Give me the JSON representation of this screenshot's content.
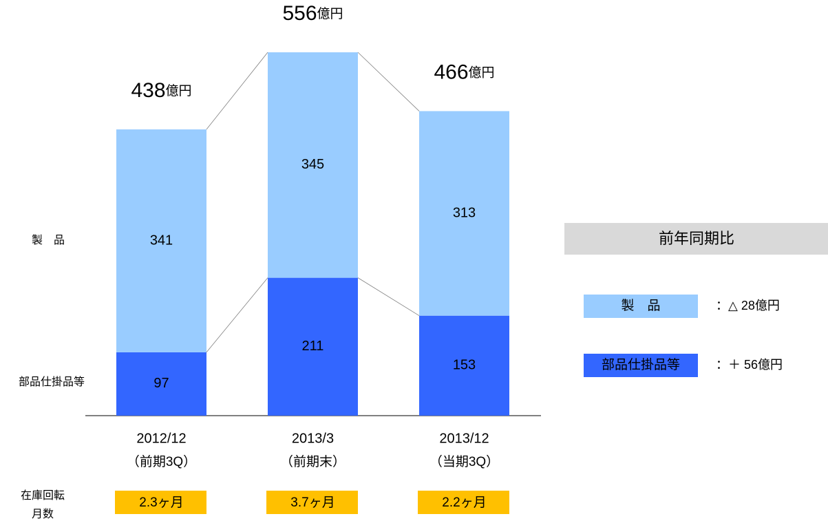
{
  "chart_data": {
    "type": "stacked_bar",
    "categories": [
      "2012/12",
      "2013/3",
      "2013/12"
    ],
    "category_notes": [
      "（前期3Q）",
      "（前期末）",
      "（当期3Q）"
    ],
    "series": [
      {
        "name": "部品仕掛品等",
        "color": "#3366ff",
        "values": [
          97,
          211,
          153
        ]
      },
      {
        "name": "製　品",
        "color": "#99ccff",
        "values": [
          341,
          345,
          313
        ]
      }
    ],
    "totals": [
      438,
      556,
      466
    ],
    "unit": "億円",
    "turnover": {
      "label_lines": [
        "在庫回転",
        "月数"
      ],
      "values": [
        2.3,
        3.7,
        2.2
      ],
      "value_labels": [
        "2.3ヶ月",
        "3.7ヶ月",
        "2.2ヶ月"
      ],
      "color": "#ffc000"
    },
    "comparison": {
      "title": "前年同期比",
      "changes": [
        "：△ 28億円",
        "：＋ 56億円"
      ]
    }
  }
}
